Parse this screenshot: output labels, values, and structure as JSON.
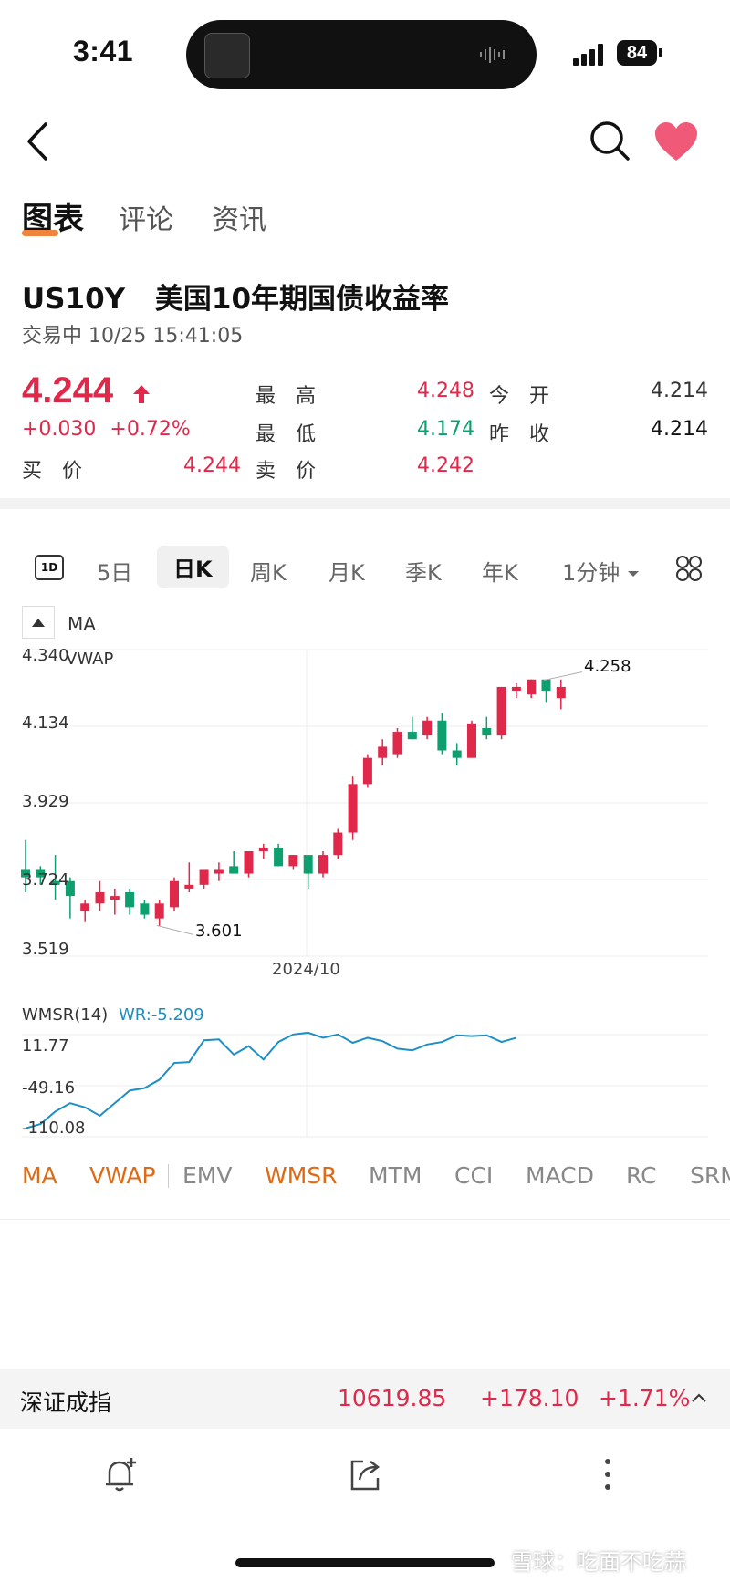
{
  "status_bar": {
    "time": "3:41",
    "battery": "84"
  },
  "tabs": [
    {
      "label": "图表",
      "active": true
    },
    {
      "label": "评论"
    },
    {
      "label": "资讯"
    }
  ],
  "instrument": {
    "symbol": "US10Y",
    "name": "美国10年期国债收益率",
    "status": "交易中 10/25 15:41:05",
    "price": "4.244",
    "change": "+0.030",
    "change_pct": "+0.72%"
  },
  "quotes": {
    "high_label": "最　高",
    "high": "4.248",
    "open_label": "今　开",
    "open": "4.214",
    "low_label": "最　低",
    "low": "4.174",
    "prev_label": "昨　收",
    "prev": "4.214",
    "bid_label": "买　价",
    "bid": "4.244",
    "ask_label": "卖　价",
    "ask": "4.242"
  },
  "periods": [
    "1D",
    "5日",
    "日K",
    "周K",
    "月K",
    "季K",
    "年K",
    "1分钟"
  ],
  "selected_period": "日K",
  "chart": {
    "ma_label": "MA",
    "vwap_label": "VWAP",
    "y_ticks": [
      "4.340",
      "4.134",
      "3.929",
      "3.724",
      "3.519"
    ],
    "x_tick": "2024/10",
    "high_note": "4.258",
    "low_note": "3.601",
    "wmsr_label": "WMSR(14)",
    "wr_label": "WR:-5.209",
    "wmsr_ticks": [
      "11.77",
      "-49.16",
      "-110.08"
    ]
  },
  "chart_data": {
    "type": "candlestick",
    "y_range": [
      3.519,
      4.34
    ],
    "candles": [
      {
        "o": 3.73,
        "h": 3.83,
        "l": 3.69,
        "c": 3.75,
        "dir": "down"
      },
      {
        "o": 3.75,
        "h": 3.76,
        "l": 3.71,
        "c": 3.73,
        "dir": "down"
      },
      {
        "o": 3.72,
        "h": 3.79,
        "l": 3.67,
        "c": 3.71,
        "dir": "down"
      },
      {
        "o": 3.72,
        "h": 3.73,
        "l": 3.62,
        "c": 3.68,
        "dir": "down"
      },
      {
        "o": 3.64,
        "h": 3.67,
        "l": 3.61,
        "c": 3.66,
        "dir": "up"
      },
      {
        "o": 3.66,
        "h": 3.72,
        "l": 3.64,
        "c": 3.69,
        "dir": "up"
      },
      {
        "o": 3.68,
        "h": 3.7,
        "l": 3.63,
        "c": 3.67,
        "dir": "up"
      },
      {
        "o": 3.69,
        "h": 3.7,
        "l": 3.63,
        "c": 3.65,
        "dir": "down"
      },
      {
        "o": 3.66,
        "h": 3.67,
        "l": 3.62,
        "c": 3.63,
        "dir": "down"
      },
      {
        "o": 3.62,
        "h": 3.67,
        "l": 3.6,
        "c": 3.66,
        "dir": "up"
      },
      {
        "o": 3.65,
        "h": 3.73,
        "l": 3.64,
        "c": 3.72,
        "dir": "up"
      },
      {
        "o": 3.7,
        "h": 3.77,
        "l": 3.69,
        "c": 3.71,
        "dir": "up"
      },
      {
        "o": 3.71,
        "h": 3.75,
        "l": 3.7,
        "c": 3.75,
        "dir": "up"
      },
      {
        "o": 3.74,
        "h": 3.77,
        "l": 3.72,
        "c": 3.75,
        "dir": "up"
      },
      {
        "o": 3.76,
        "h": 3.8,
        "l": 3.74,
        "c": 3.74,
        "dir": "down"
      },
      {
        "o": 3.74,
        "h": 3.8,
        "l": 3.73,
        "c": 3.8,
        "dir": "up"
      },
      {
        "o": 3.8,
        "h": 3.82,
        "l": 3.78,
        "c": 3.81,
        "dir": "up"
      },
      {
        "o": 3.81,
        "h": 3.82,
        "l": 3.76,
        "c": 3.76,
        "dir": "down"
      },
      {
        "o": 3.76,
        "h": 3.79,
        "l": 3.75,
        "c": 3.79,
        "dir": "up"
      },
      {
        "o": 3.79,
        "h": 3.79,
        "l": 3.7,
        "c": 3.74,
        "dir": "down"
      },
      {
        "o": 3.74,
        "h": 3.8,
        "l": 3.73,
        "c": 3.79,
        "dir": "up"
      },
      {
        "o": 3.79,
        "h": 3.86,
        "l": 3.78,
        "c": 3.85,
        "dir": "up"
      },
      {
        "o": 3.85,
        "h": 4.0,
        "l": 3.83,
        "c": 3.98,
        "dir": "up"
      },
      {
        "o": 3.98,
        "h": 4.06,
        "l": 3.97,
        "c": 4.05,
        "dir": "up"
      },
      {
        "o": 4.05,
        "h": 4.1,
        "l": 4.03,
        "c": 4.08,
        "dir": "up"
      },
      {
        "o": 4.06,
        "h": 4.13,
        "l": 4.05,
        "c": 4.12,
        "dir": "up"
      },
      {
        "o": 4.12,
        "h": 4.16,
        "l": 4.1,
        "c": 4.1,
        "dir": "down"
      },
      {
        "o": 4.11,
        "h": 4.16,
        "l": 4.1,
        "c": 4.15,
        "dir": "up"
      },
      {
        "o": 4.15,
        "h": 4.17,
        "l": 4.06,
        "c": 4.07,
        "dir": "down"
      },
      {
        "o": 4.07,
        "h": 4.09,
        "l": 4.03,
        "c": 4.05,
        "dir": "down"
      },
      {
        "o": 4.05,
        "h": 4.15,
        "l": 4.05,
        "c": 4.14,
        "dir": "up"
      },
      {
        "o": 4.13,
        "h": 4.16,
        "l": 4.1,
        "c": 4.11,
        "dir": "down"
      },
      {
        "o": 4.11,
        "h": 4.24,
        "l": 4.1,
        "c": 4.24,
        "dir": "up"
      },
      {
        "o": 4.23,
        "h": 4.25,
        "l": 4.21,
        "c": 4.24,
        "dir": "up"
      },
      {
        "o": 4.22,
        "h": 4.26,
        "l": 4.21,
        "c": 4.26,
        "dir": "up"
      },
      {
        "o": 4.26,
        "h": 4.26,
        "l": 4.2,
        "c": 4.23,
        "dir": "down"
      },
      {
        "o": 4.21,
        "h": 4.26,
        "l": 4.18,
        "c": 4.24,
        "dir": "up"
      }
    ],
    "wmsr": [
      -100,
      -95,
      -80,
      -70,
      -75,
      -85,
      -70,
      -55,
      -52,
      -42,
      -22,
      -21,
      5,
      6,
      -12,
      -2,
      -18,
      3,
      12,
      14,
      8,
      12,
      2,
      8,
      4,
      -5,
      -7,
      0,
      3,
      11,
      10,
      11,
      3,
      8
    ]
  },
  "indicators": [
    {
      "label": "MA",
      "on": true
    },
    {
      "label": "VWAP",
      "on": true
    },
    {
      "label": "EMV"
    },
    {
      "label": "WMSR",
      "on": true
    },
    {
      "label": "MTM"
    },
    {
      "label": "CCI"
    },
    {
      "label": "MACD"
    },
    {
      "label": "RC"
    },
    {
      "label": "SRM"
    }
  ],
  "index_bar": {
    "name": "深证成指",
    "value": "10619.85",
    "change": "+178.10",
    "pct": "+1.71%"
  },
  "watermark": "雪球：吃面不吃蒜",
  "colors": {
    "up": "#e0284a",
    "down": "#0e9f6e",
    "accent": "#e06a14",
    "wmsr": "#1c8fc4"
  }
}
